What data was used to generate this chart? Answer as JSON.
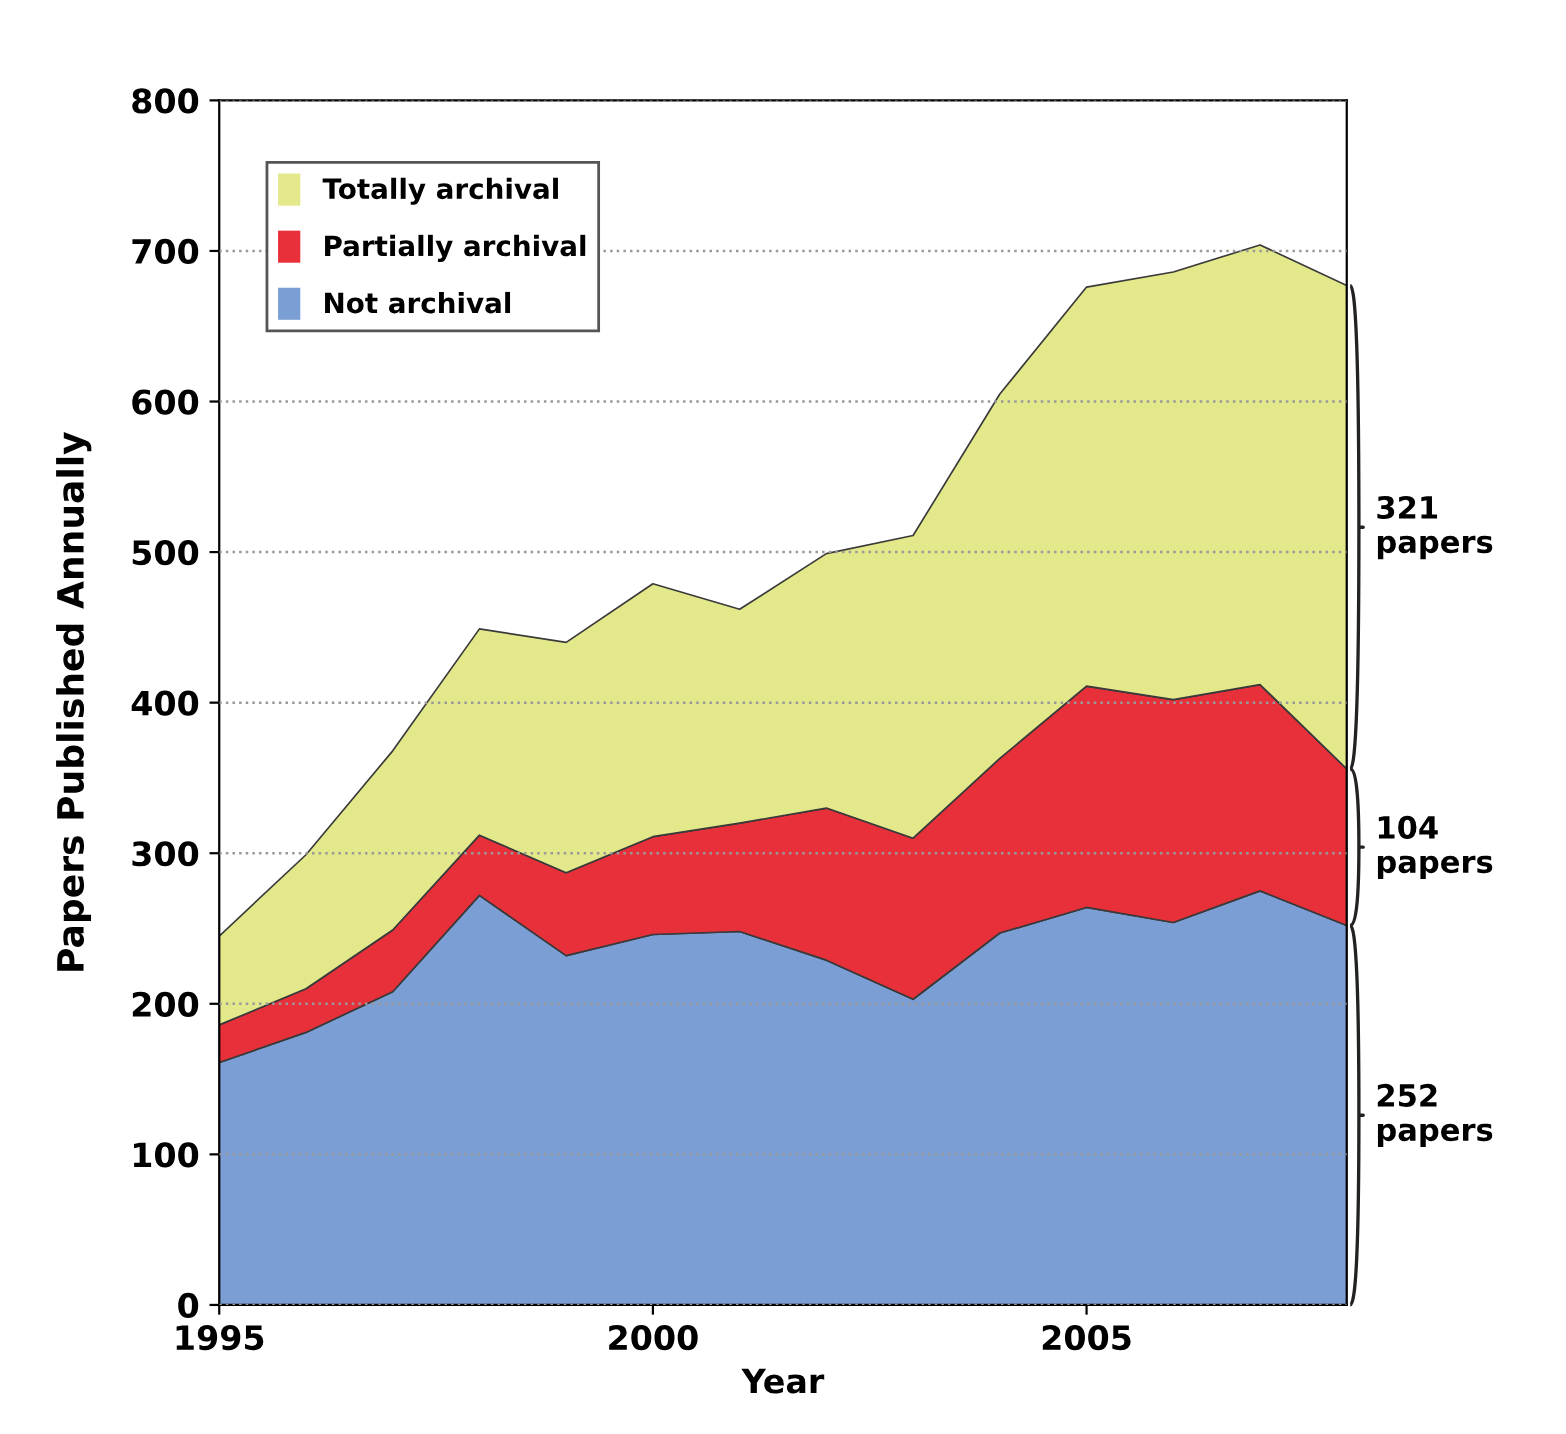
{
  "chart_data": {
    "type": "area",
    "stacked": true,
    "xlabel": "Year",
    "ylabel": "Papers Published Annually",
    "x": [
      1995,
      1996,
      1997,
      1998,
      1999,
      2000,
      2001,
      2002,
      2003,
      2004,
      2005,
      2006,
      2007,
      2008
    ],
    "series": [
      {
        "name": "Not archival",
        "color": "#7b9fd4",
        "values": [
          161,
          181,
          208,
          272,
          232,
          246,
          248,
          229,
          203,
          247,
          264,
          254,
          275,
          252
        ]
      },
      {
        "name": "Partially archival",
        "color": "#e8303a",
        "values": [
          25,
          29,
          41,
          40,
          55,
          65,
          72,
          101,
          107,
          116,
          147,
          148,
          137,
          104
        ]
      },
      {
        "name": "Totally archival",
        "color": "#e3e98a",
        "values": [
          59,
          89,
          119,
          137,
          153,
          168,
          142,
          169,
          201,
          242,
          265,
          284,
          292,
          321
        ]
      }
    ],
    "xlim": [
      1995,
      2008
    ],
    "xticks": [
      1995,
      2000,
      2005
    ],
    "ylim": [
      0,
      800
    ],
    "yticks": [
      0,
      100,
      200,
      300,
      400,
      500,
      600,
      700,
      800
    ],
    "grid": "y",
    "legend": "top left",
    "annotations": [
      "321\npapers",
      "104\npapers",
      "252\npapers"
    ]
  }
}
